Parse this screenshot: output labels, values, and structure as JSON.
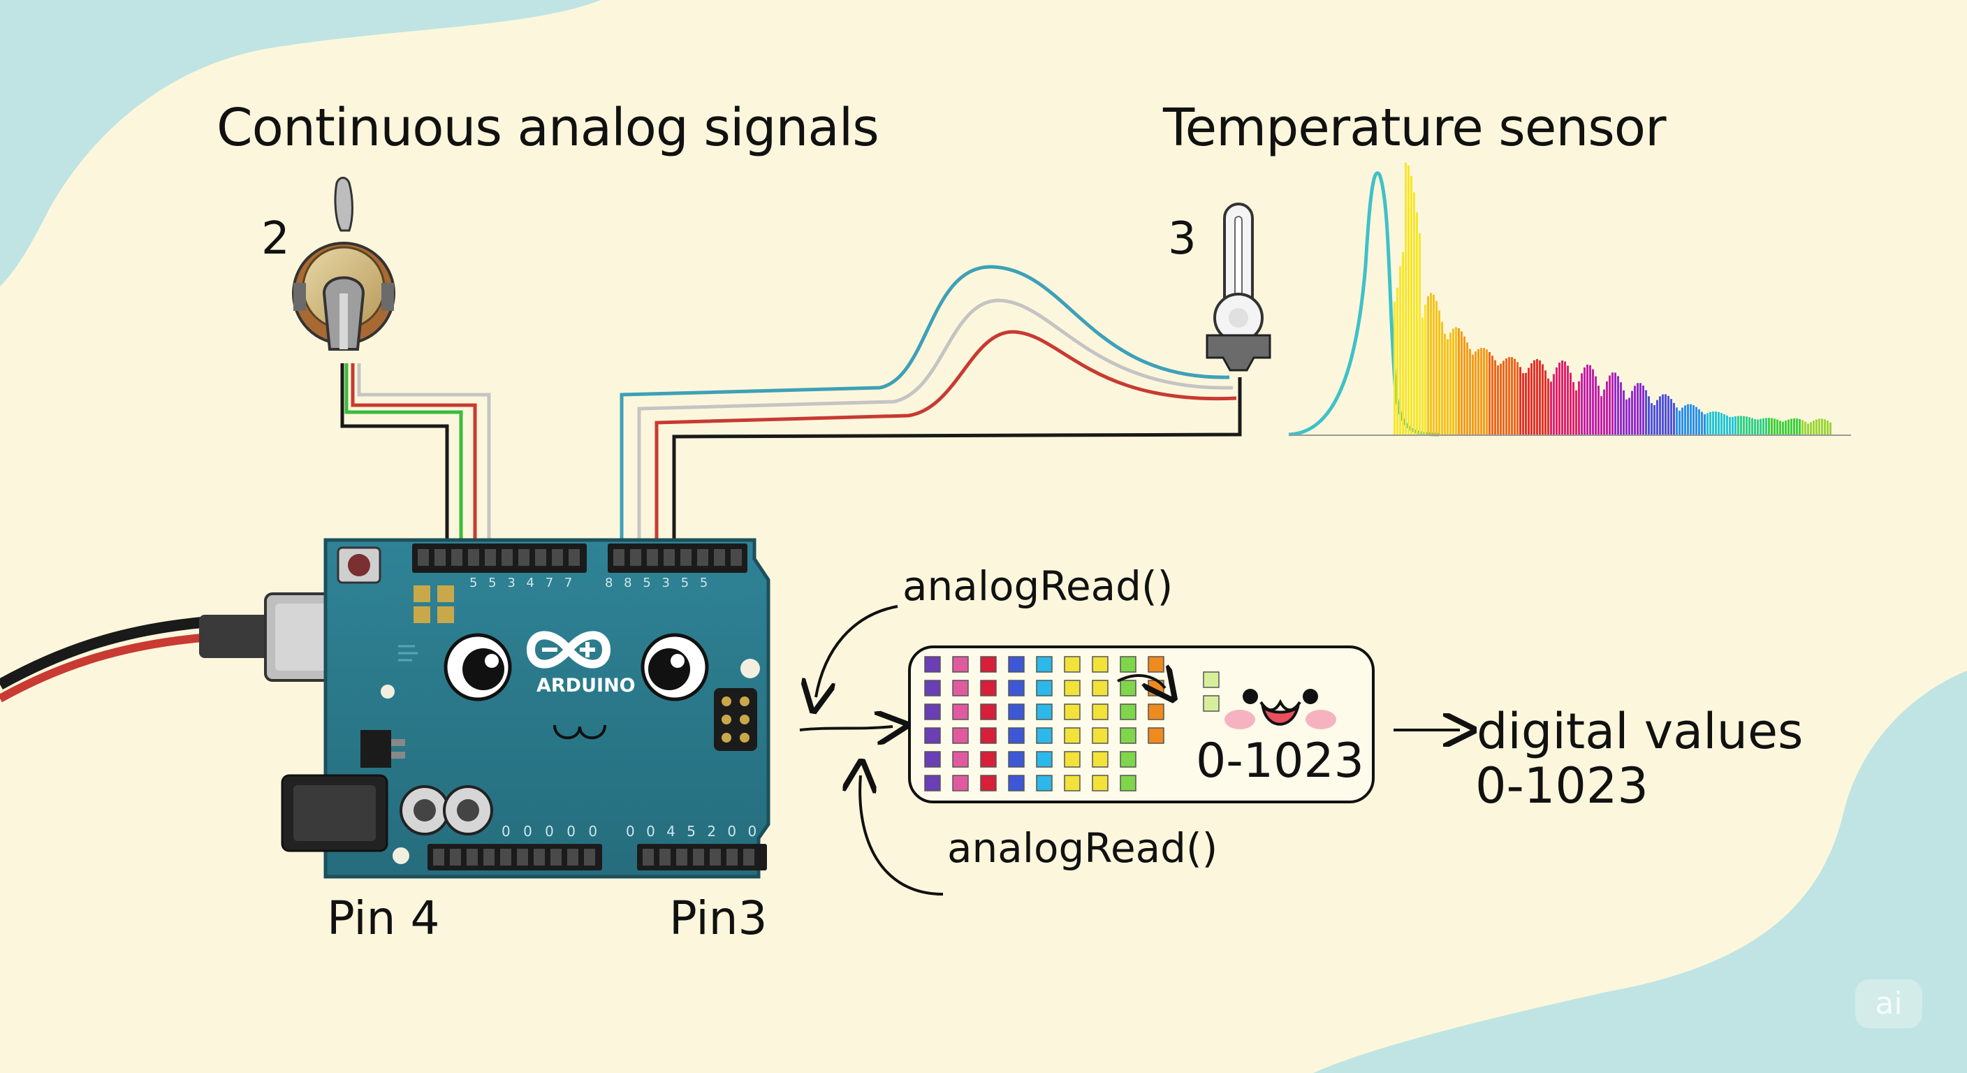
{
  "labels": {
    "continuous_title": "Continuous analog signals",
    "temp_title": "Temperature sensor",
    "pot_number": "2",
    "sensor_number": "3",
    "analog_read_top": "analogRead()",
    "analog_read_bottom": "analogRead()",
    "range_in_box": "0-1023",
    "digital_values": "digital values",
    "digital_range": "0-1023",
    "pin4": "Pin 4",
    "pin3": "Pin3",
    "board_brand": "ARDUINO",
    "corner_badge": "ai"
  },
  "header_pin_numbers": {
    "top_left": "5 5 3 4 7 7",
    "top_right": "8 8 5 3 5 5",
    "bottom_left": "0 0 0 0 0",
    "bottom_right": "0 0 4 5 2 0 0"
  },
  "colors": {
    "background": "#fcf7dc",
    "corner_blob": "#bfe4e3",
    "board": "#2e7d8f",
    "wire_blue": "#3ea0b8",
    "wire_red": "#c83a32",
    "wire_green": "#3dbb3d",
    "wire_gray": "#c4c4c4",
    "wire_black": "#1a1a1a"
  },
  "icons": [
    "potentiometer-icon",
    "thermometer-icon",
    "arduino-board",
    "usb-cable-icon",
    "arrow-icon",
    "kawaii-face-icon"
  ]
}
